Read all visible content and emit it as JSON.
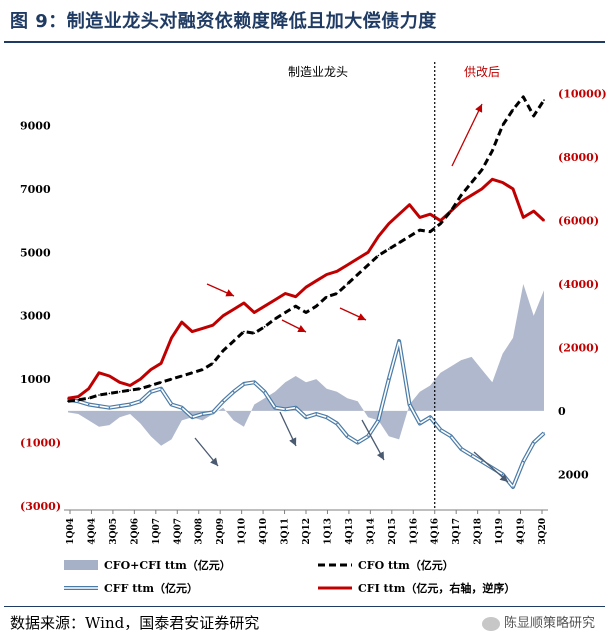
{
  "title": "图 9：制造业龙头对融资依赖度降低且加大偿债力度",
  "source": "数据来源：Wind，国泰君安证券研究",
  "watermark": "陈显顺策略研究",
  "colors": {
    "cfo": "#000000",
    "cfi": "#c00000",
    "cff": "#4a7ba7",
    "sum": "#a6b0c7",
    "title": "#1f3b63"
  },
  "chart_data": {
    "type": "line",
    "title": "",
    "annotations": {
      "left_label": "制造业龙头",
      "right_label": "供改后",
      "divider_at": "4Q16"
    },
    "x_tick_labels": [
      "1Q04",
      "4Q04",
      "3Q05",
      "2Q06",
      "1Q07",
      "4Q07",
      "3Q08",
      "2Q09",
      "1Q10",
      "4Q10",
      "3Q11",
      "2Q12",
      "1Q13",
      "4Q13",
      "3Q14",
      "2Q15",
      "1Q16",
      "4Q16",
      "3Q17",
      "2Q18",
      "1Q19",
      "4Q19",
      "3Q20"
    ],
    "left_axis": {
      "range": [
        -3000,
        11000
      ],
      "tick_labels": [
        "9000",
        "7000",
        "5000",
        "3000",
        "1000",
        "(1000)",
        "(3000)"
      ],
      "tick_values": [
        9000,
        7000,
        5000,
        3000,
        1000,
        -1000,
        -3000
      ]
    },
    "right_axis": {
      "reversed": true,
      "unit": "亿元",
      "tick_labels": [
        "(10000)",
        "(8000)",
        "(6000)",
        "(4000)",
        "(2000)",
        "0",
        "2000"
      ],
      "tick_values": [
        -10000,
        -8000,
        -6000,
        -4000,
        -2000,
        0,
        2000
      ]
    },
    "legend": [
      {
        "key": "sum",
        "label": "CFO+CFI ttm（亿元）"
      },
      {
        "key": "cfo",
        "label": "CFO ttm（亿元）"
      },
      {
        "key": "cff",
        "label": "CFF ttm（亿元）"
      },
      {
        "key": "cfi",
        "label": "CFI ttm（亿元，右轴，逆序）"
      }
    ],
    "series": [
      {
        "key": "cfo",
        "name": "CFO ttm（亿元）",
        "axis": "left",
        "values": [
          300,
          350,
          400,
          500,
          550,
          600,
          650,
          700,
          800,
          900,
          1000,
          1100,
          1200,
          1300,
          1500,
          1900,
          2200,
          2500,
          2450,
          2650,
          2900,
          3100,
          3300,
          3100,
          3300,
          3600,
          3700,
          4000,
          4300,
          4600,
          4900,
          5100,
          5300,
          5500,
          5700,
          5650,
          5900,
          6300,
          6800,
          7200,
          7600,
          8200,
          9000,
          9500,
          9900,
          9300,
          9800
        ]
      },
      {
        "key": "cfi",
        "name": "CFI ttm（亿元，右轴，逆序）",
        "axis": "right",
        "reversed": true,
        "values": [
          -400,
          -450,
          -700,
          -1200,
          -1100,
          -900,
          -800,
          -1000,
          -1300,
          -1500,
          -2300,
          -2800,
          -2500,
          -2600,
          -2700,
          -3000,
          -3200,
          -3400,
          -3100,
          -3300,
          -3500,
          -3700,
          -3600,
          -3900,
          -4100,
          -4300,
          -4400,
          -4600,
          -4800,
          -5000,
          -5500,
          -5900,
          -6200,
          -6500,
          -6100,
          -6200,
          -6000,
          -6300,
          -6600,
          -6800,
          -7000,
          -7300,
          -7200,
          -7000,
          -6100,
          -6300,
          -6000
        ]
      },
      {
        "key": "cff",
        "name": "CFF ttm（亿元）",
        "axis": "left",
        "values": [
          350,
          300,
          200,
          150,
          100,
          150,
          200,
          300,
          600,
          700,
          200,
          100,
          -200,
          -100,
          -50,
          300,
          600,
          850,
          900,
          600,
          100,
          50,
          100,
          -200,
          -100,
          -200,
          -400,
          -800,
          -1000,
          -800,
          -300,
          1000,
          2200,
          200,
          -400,
          -200,
          -600,
          -800,
          -1200,
          -1400,
          -1600,
          -1800,
          -2000,
          -2400,
          -1600,
          -1000,
          -700
        ]
      },
      {
        "key": "sum",
        "name": "CFO+CFI ttm（亿元）",
        "axis": "left",
        "values": [
          -50,
          -100,
          -300,
          -500,
          -450,
          -200,
          -100,
          -400,
          -800,
          -1100,
          -900,
          -300,
          -200,
          -300,
          -100,
          100,
          -300,
          -500,
          200,
          400,
          600,
          900,
          1100,
          900,
          1000,
          700,
          600,
          400,
          300,
          -200,
          -300,
          -800,
          -900,
          200,
          600,
          800,
          1200,
          1400,
          1600,
          1700,
          1300,
          900,
          1800,
          2300,
          4000,
          3000,
          3800
        ]
      }
    ]
  }
}
